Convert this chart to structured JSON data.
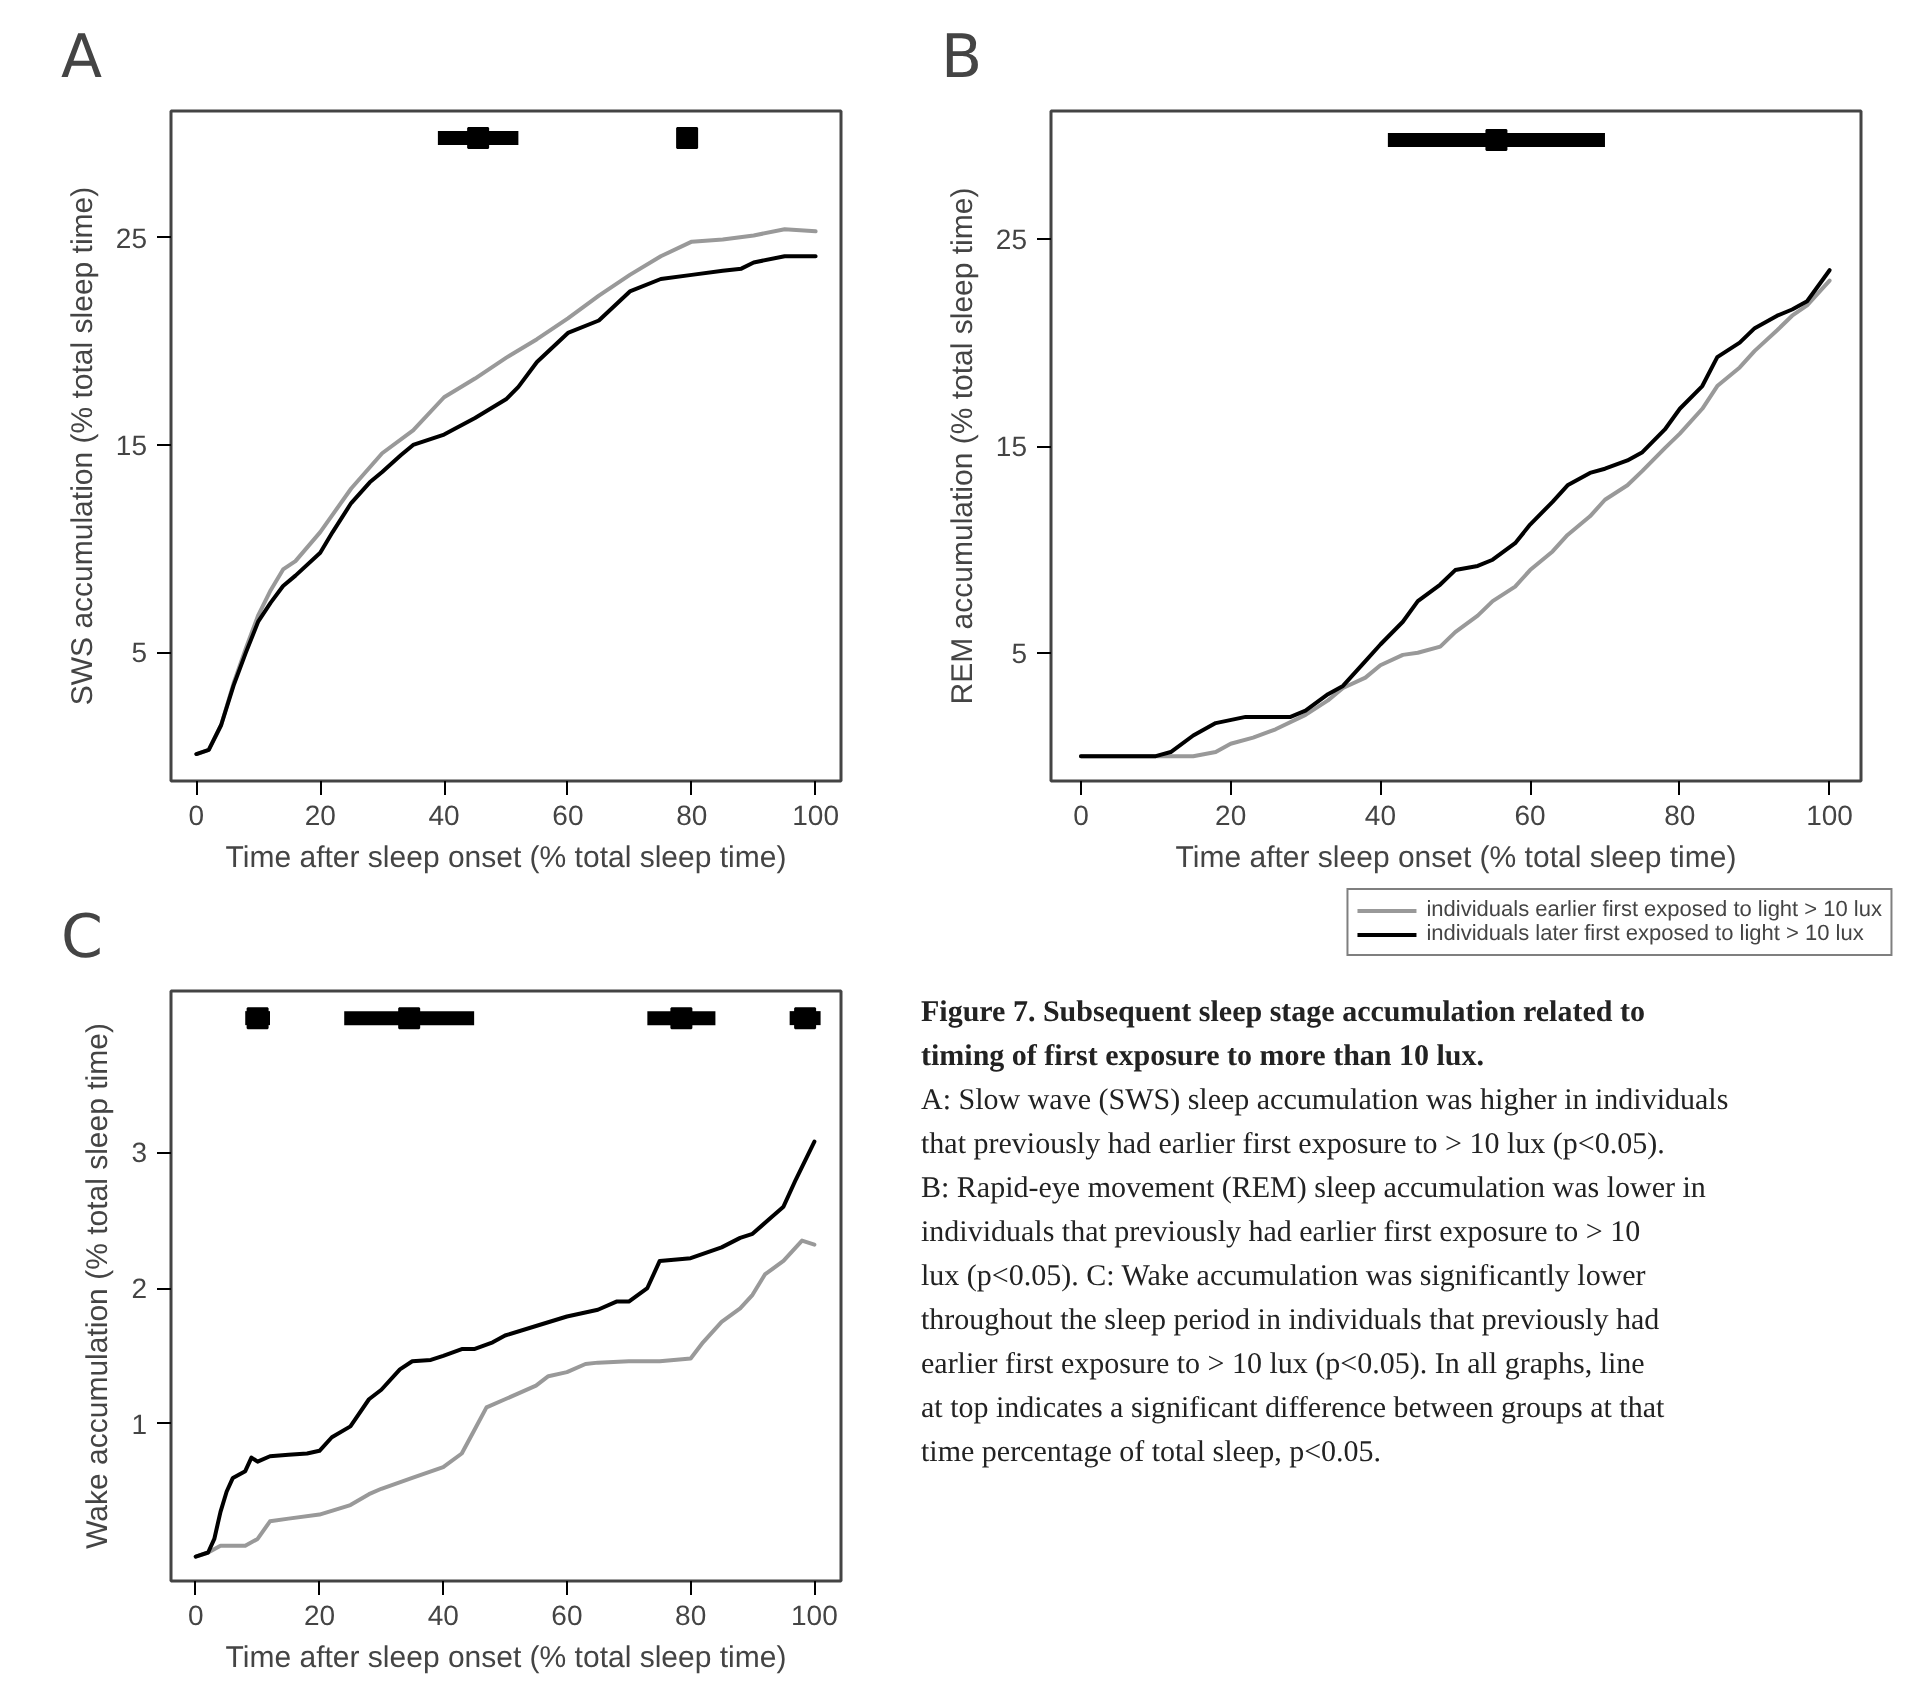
{
  "chart_data": [
    {
      "type": "line",
      "title": "A",
      "xlabel": "Time after sleep onset (% total sleep time)",
      "ylabel": "SWS accumulation (% total sleep time)",
      "xlim": [
        -4.1,
        104.1
      ],
      "ylim": [
        -1.2,
        31.1
      ],
      "xticks": [
        0,
        20,
        40,
        60,
        80,
        100
      ],
      "yticks": [
        5,
        15,
        25
      ],
      "grid": false,
      "legend": false,
      "series": [
        {
          "color": "#999999",
          "x": [
            0,
            2,
            4,
            6,
            8,
            10,
            12,
            14,
            16,
            20,
            25,
            30,
            35,
            40,
            45,
            50,
            55,
            60,
            65,
            70,
            75,
            80,
            85,
            90,
            95,
            100
          ],
          "values": [
            0.1,
            0.3,
            1.5,
            3.5,
            5.2,
            6.8,
            8.0,
            9.0,
            9.4,
            10.8,
            12.9,
            14.6,
            15.7,
            17.3,
            18.2,
            19.2,
            20.1,
            21.1,
            22.2,
            23.2,
            24.1,
            24.8,
            24.9,
            25.1,
            25.4,
            25.3
          ]
        },
        {
          "color": "#000000",
          "x": [
            0,
            2,
            4,
            6,
            8,
            10,
            12,
            14,
            16,
            20,
            22,
            25,
            28,
            30,
            33,
            35,
            40,
            45,
            50,
            52,
            55,
            60,
            65,
            70,
            75,
            80,
            85,
            88,
            90,
            95,
            100
          ],
          "values": [
            0.1,
            0.3,
            1.5,
            3.4,
            5.0,
            6.5,
            7.4,
            8.2,
            8.7,
            9.8,
            10.8,
            12.2,
            13.2,
            13.7,
            14.5,
            15.0,
            15.5,
            16.3,
            17.2,
            17.8,
            19.0,
            20.4,
            21.0,
            22.4,
            23.0,
            23.2,
            23.4,
            23.5,
            23.8,
            24.1,
            24.1
          ]
        },
        {
          "type": "scatter",
          "marker": "square",
          "color": "#000000",
          "x": [
            45.5,
            79.25
          ],
          "values": [
            29.8,
            29.8
          ],
          "xerrors": [
            [
              39,
              52
            ],
            null
          ]
        }
      ]
    },
    {
      "type": "line",
      "title": "B",
      "xlabel": "Time after sleep onset (% total sleep time)",
      "ylabel": "REM accumulation (% total sleep time)",
      "xlim": [
        -4.0,
        104.2
      ],
      "ylim": [
        -1.2,
        31.2
      ],
      "xticks": [
        0,
        20,
        40,
        60,
        80,
        100
      ],
      "yticks": [
        5,
        15,
        25
      ],
      "grid": false,
      "legend": "bottom",
      "series": [
        {
          "name": "individuals earlier first exposed to light > 10 lux",
          "color": "#999999",
          "x": [
            0,
            15,
            18,
            20,
            23,
            26,
            30,
            33,
            35,
            38,
            40,
            43,
            45,
            48,
            50,
            53,
            55,
            58,
            60,
            63,
            65,
            68,
            70,
            73,
            75,
            78,
            80,
            83,
            85,
            88,
            90,
            93,
            95,
            97,
            100
          ],
          "values": [
            0,
            0,
            0.2,
            0.6,
            0.9,
            1.3,
            2.0,
            2.7,
            3.3,
            3.8,
            4.4,
            4.9,
            5.0,
            5.3,
            6.0,
            6.8,
            7.5,
            8.2,
            9.0,
            9.9,
            10.7,
            11.6,
            12.4,
            13.1,
            13.8,
            14.9,
            15.6,
            16.8,
            17.9,
            18.8,
            19.6,
            20.6,
            21.3,
            21.8,
            23.0
          ]
        },
        {
          "name": "individuals later first exposed to light > 10 lux",
          "color": "#000000",
          "x": [
            0,
            10,
            12,
            15,
            18,
            22,
            25,
            28,
            30,
            33,
            35,
            38,
            40,
            43,
            45,
            48,
            50,
            53,
            55,
            58,
            60,
            63,
            65,
            68,
            70,
            73,
            75,
            78,
            80,
            83,
            85,
            88,
            90,
            93,
            95,
            97,
            100
          ],
          "values": [
            0,
            0,
            0.2,
            1.0,
            1.6,
            1.9,
            1.9,
            1.9,
            2.2,
            3.0,
            3.4,
            4.6,
            5.4,
            6.5,
            7.5,
            8.3,
            9.0,
            9.2,
            9.5,
            10.3,
            11.2,
            12.3,
            13.1,
            13.7,
            13.9,
            14.3,
            14.7,
            15.8,
            16.8,
            17.9,
            19.3,
            20.0,
            20.7,
            21.3,
            21.6,
            22.0,
            23.5
          ]
        },
        {
          "type": "scatter",
          "marker": "square",
          "color": "#000000",
          "x": [
            55.5
          ],
          "values": [
            29.8
          ],
          "xerrors": [
            [
              41,
              70
            ]
          ]
        }
      ]
    },
    {
      "type": "line",
      "title": "C",
      "xlabel": "Time after sleep onset (% total sleep time)",
      "ylabel": "Wake accumulation (% total sleep time)",
      "xlim": [
        -4.0,
        104.3
      ],
      "ylim": [
        -0.16,
        4.19
      ],
      "xticks": [
        0,
        20,
        40,
        60,
        80,
        100
      ],
      "yticks": [
        1,
        2,
        3
      ],
      "grid": false,
      "legend": false,
      "series": [
        {
          "color": "#999999",
          "x": [
            0,
            2,
            4,
            8,
            10,
            12,
            15,
            20,
            25,
            28,
            30,
            35,
            40,
            43,
            45,
            47,
            50,
            55,
            57,
            60,
            63,
            65,
            70,
            75,
            80,
            82,
            85,
            88,
            90,
            92,
            95,
            98,
            100
          ],
          "values": [
            0.02,
            0.05,
            0.1,
            0.1,
            0.15,
            0.28,
            0.3,
            0.33,
            0.4,
            0.48,
            0.52,
            0.6,
            0.68,
            0.78,
            0.95,
            1.12,
            1.18,
            1.28,
            1.35,
            1.38,
            1.44,
            1.45,
            1.46,
            1.46,
            1.48,
            1.6,
            1.75,
            1.85,
            1.95,
            2.1,
            2.2,
            2.35,
            2.32
          ]
        },
        {
          "color": "#000000",
          "x": [
            0,
            2,
            3,
            4,
            5,
            6,
            8,
            9,
            10,
            12,
            15,
            18,
            20,
            22,
            25,
            28,
            30,
            33,
            35,
            38,
            40,
            43,
            45,
            48,
            50,
            55,
            60,
            65,
            68,
            70,
            73,
            75,
            80,
            85,
            88,
            90,
            93,
            95,
            97,
            100
          ],
          "values": [
            0.02,
            0.05,
            0.15,
            0.35,
            0.5,
            0.6,
            0.65,
            0.75,
            0.72,
            0.76,
            0.77,
            0.78,
            0.8,
            0.9,
            0.98,
            1.18,
            1.25,
            1.4,
            1.46,
            1.47,
            1.5,
            1.55,
            1.55,
            1.6,
            1.65,
            1.72,
            1.79,
            1.84,
            1.9,
            1.9,
            2.0,
            2.2,
            2.22,
            2.3,
            2.37,
            2.4,
            2.52,
            2.6,
            2.8,
            3.08
          ]
        },
        {
          "type": "scatter",
          "marker": "square",
          "color": "#000000",
          "x": [
            10,
            34.5,
            78.5,
            98.5
          ],
          "values": [
            3.99,
            3.99,
            3.99,
            3.99
          ],
          "xerrors": [
            [
              8,
              12
            ],
            [
              24,
              45
            ],
            [
              73,
              84
            ],
            [
              96,
              101
            ]
          ]
        }
      ]
    },
    {
      "type": "other",
      "title": "Figure 7. Subsequent sleep stage accumulation related to timing of first exposure to more than 10 lux.",
      "annotations": [
        "A: Slow wave (SWS) sleep accumulation was higher in individuals that previously had earlier first exposure to > 10 lux (p<0.05).",
        "B: Rapid-eye movement (REM) sleep accumulation was lower in individuals that previously had earlier first exposure to > 10 lux (p<0.05).",
        "C: Wake accumulation was significantly lower throughout the sleep period in individuals that previously had earlier first exposure to > 10 lux (p<0.05).",
        "In all graphs, line at top indicates a significant difference between groups at that time percentage of total sleep, p<0.05."
      ]
    }
  ]
}
